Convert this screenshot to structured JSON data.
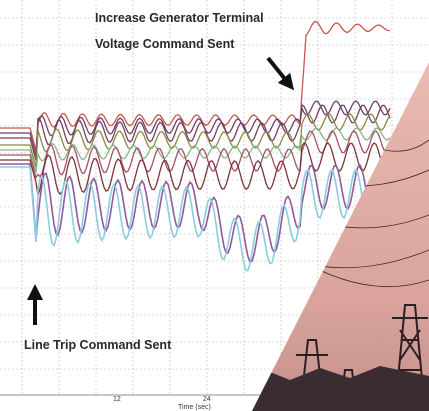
{
  "annotations": {
    "generator": [
      "Increase Generator Terminal",
      "Voltage Command Sent"
    ],
    "line_trip": "Line Trip Command Sent"
  },
  "axis": {
    "ticks": [
      "12",
      "24"
    ],
    "label": "Time (sec)"
  }
}
